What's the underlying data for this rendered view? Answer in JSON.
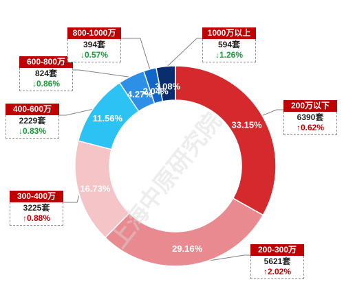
{
  "chart_data": {
    "type": "pie",
    "title": "",
    "categories": [
      "200万以下",
      "200-300万",
      "300-400万",
      "400-600万",
      "600-800万",
      "800-1000万",
      "1000万以上"
    ],
    "values": [
      33.15,
      29.16,
      16.73,
      11.56,
      4.27,
      2.04,
      3.08
    ],
    "value_labels": [
      "33.15%",
      "29.16%",
      "16.73%",
      "11.56%",
      "4.27%",
      "2.04%",
      "3.08%"
    ],
    "counts": [
      "6390套",
      "5621套",
      "3225套",
      "2229套",
      "824套",
      "394套",
      "594套"
    ],
    "changes": [
      {
        "text": "↑0.62%",
        "direction": "up"
      },
      {
        "text": "↑2.02%",
        "direction": "up"
      },
      {
        "text": "↑0.88%",
        "direction": "up"
      },
      {
        "text": "↓0.83%",
        "direction": "down"
      },
      {
        "text": "↓0.86%",
        "direction": "down"
      },
      {
        "text": "↓0.57%",
        "direction": "down"
      },
      {
        "text": "↓1.26%",
        "direction": "down"
      }
    ],
    "colors": [
      "#d42a2e",
      "#e88a8f",
      "#f4c4c6",
      "#2cc3f4",
      "#2e8fe6",
      "#1266c8",
      "#0a2d6e"
    ],
    "donut": true,
    "legend": "none"
  },
  "watermark": "上海中原研究院"
}
